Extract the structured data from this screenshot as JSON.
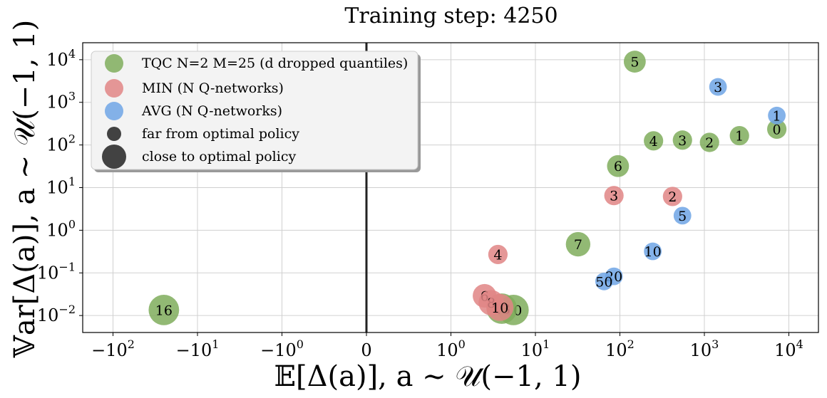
{
  "chart_data": {
    "type": "scatter",
    "title": "Training step: 4250",
    "xlabel": "𝔼[Δ(a)],    a ∼ 𝒰(−1, 1)",
    "ylabel": "𝕍ar[Δ(a)],    a ∼ 𝒰(−1, 1)",
    "x_scale": "symlog",
    "y_scale": "log",
    "xlim": [
      -400,
      30000
    ],
    "ylim": [
      0.004,
      25000
    ],
    "x_ticks": [
      {
        "value": -100,
        "label": "−10",
        "sup": "2"
      },
      {
        "value": -10,
        "label": "−10",
        "sup": "1"
      },
      {
        "value": -1,
        "label": "−10",
        "sup": "0"
      },
      {
        "value": 0,
        "label": "0",
        "sup": ""
      },
      {
        "value": 1,
        "label": "10",
        "sup": "0"
      },
      {
        "value": 10,
        "label": "10",
        "sup": "1"
      },
      {
        "value": 100,
        "label": "10",
        "sup": "2"
      },
      {
        "value": 1000,
        "label": "10",
        "sup": "3"
      },
      {
        "value": 10000,
        "label": "10",
        "sup": "4"
      }
    ],
    "y_ticks": [
      {
        "value": 0.01,
        "label": "10",
        "sup": "−2"
      },
      {
        "value": 0.1,
        "label": "10",
        "sup": "−1"
      },
      {
        "value": 1,
        "label": "10",
        "sup": "0"
      },
      {
        "value": 10,
        "label": "10",
        "sup": "1"
      },
      {
        "value": 100,
        "label": "10",
        "sup": "2"
      },
      {
        "value": 1000,
        "label": "10",
        "sup": "3"
      },
      {
        "value": 10000,
        "label": "10",
        "sup": "4"
      }
    ],
    "grid": true,
    "legend_position": "top-left",
    "vline_x": 0,
    "series": [
      {
        "name": "TQC N=2 M=25 (d dropped quantiles)",
        "color": "#7fad5c",
        "points": [
          {
            "x": 150,
            "y": 9000,
            "label": "5",
            "closeness": 0.45
          },
          {
            "x": 250,
            "y": 125,
            "label": "4",
            "closeness": 0.3
          },
          {
            "x": 550,
            "y": 130,
            "label": "3",
            "closeness": 0.3
          },
          {
            "x": 1150,
            "y": 115,
            "label": "2",
            "closeness": 0.3
          },
          {
            "x": 2600,
            "y": 165,
            "label": "1",
            "closeness": 0.3
          },
          {
            "x": 7200,
            "y": 235,
            "label": "0",
            "closeness": 0.3
          },
          {
            "x": 95,
            "y": 32,
            "label": "6",
            "closeness": 0.45
          },
          {
            "x": 32,
            "y": 0.47,
            "label": "7",
            "closeness": 0.6
          },
          {
            "x": 5.5,
            "y": 0.0135,
            "label": "10",
            "closeness": 0.95
          },
          {
            "x": 4.0,
            "y": 0.0145,
            "label": "13",
            "closeness": 0.95
          },
          {
            "x": -25,
            "y": 0.0135,
            "label": "16",
            "closeness": 0.95
          }
        ]
      },
      {
        "name": "MIN (N Q-networks)",
        "color": "#e08585",
        "points": [
          {
            "x": 85,
            "y": 6.5,
            "label": "3",
            "closeness": 0.3
          },
          {
            "x": 420,
            "y": 6.2,
            "label": "2",
            "closeness": 0.3
          },
          {
            "x": 3.6,
            "y": 0.27,
            "label": "4",
            "closeness": 0.3
          },
          {
            "x": 2.5,
            "y": 0.029,
            "label": "6",
            "closeness": 0.55
          },
          {
            "x": 3.0,
            "y": 0.02,
            "label": "8",
            "closeness": 0.65
          },
          {
            "x": 3.8,
            "y": 0.0155,
            "label": "10",
            "closeness": 0.75
          }
        ]
      },
      {
        "name": "AVG (N Q-networks)",
        "color": "#6ea4e5",
        "points": [
          {
            "x": 1450,
            "y": 2300,
            "label": "3",
            "closeness": 0.2
          },
          {
            "x": 7200,
            "y": 490,
            "label": "1",
            "closeness": 0.2
          },
          {
            "x": 550,
            "y": 2.2,
            "label": "5",
            "closeness": 0.2
          },
          {
            "x": 245,
            "y": 0.32,
            "label": "10",
            "closeness": 0.2
          },
          {
            "x": 85,
            "y": 0.083,
            "label": "20",
            "closeness": 0.2
          },
          {
            "x": 65,
            "y": 0.063,
            "label": "50",
            "closeness": 0.2
          }
        ]
      }
    ],
    "legend": [
      {
        "label": "TQC N=2 M=25 (d dropped quantiles)",
        "color": "#7fad5c",
        "marker": "circle",
        "size": "medium"
      },
      {
        "label": "MIN (N Q-networks)",
        "color": "#e08585",
        "marker": "circle",
        "size": "medium"
      },
      {
        "label": "AVG (N Q-networks)",
        "color": "#6ea4e5",
        "marker": "circle",
        "size": "medium"
      },
      {
        "label": "far from optimal policy",
        "color": "#222222",
        "marker": "circle",
        "size": "small"
      },
      {
        "label": "close to optimal policy",
        "color": "#222222",
        "marker": "circle",
        "size": "large"
      }
    ]
  }
}
